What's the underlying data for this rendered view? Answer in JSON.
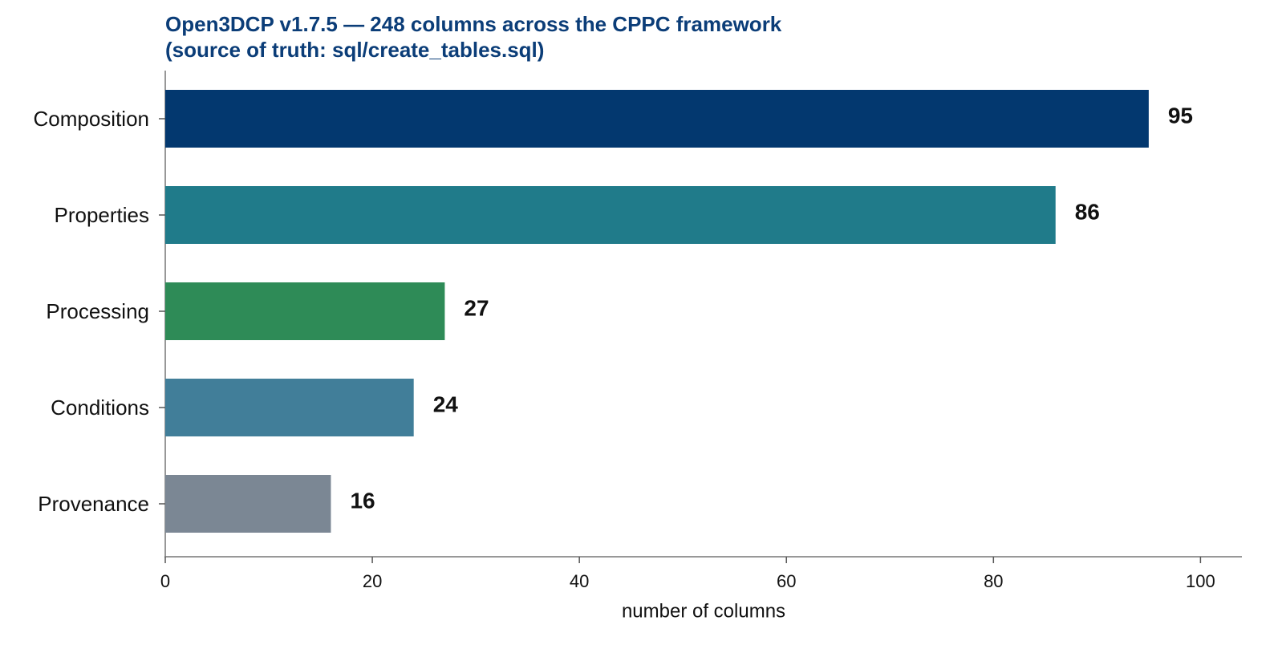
{
  "chart_data": {
    "type": "barh",
    "title": "Open3DCP v1.7.5 — 248 columns across the CPPC framework",
    "subtitle": "(source of truth: sql/create_tables.sql)",
    "xlabel": "number of columns",
    "categories": [
      "Composition",
      "Properties",
      "Processing",
      "Conditions",
      "Provenance"
    ],
    "values": [
      95,
      86,
      27,
      24,
      16
    ],
    "colors": [
      "#03386f",
      "#207b8a",
      "#2e8b57",
      "#417e99",
      "#7b8794"
    ],
    "xlim": [
      0,
      104
    ],
    "xticks": [
      0,
      20,
      40,
      60,
      80,
      100
    ]
  }
}
